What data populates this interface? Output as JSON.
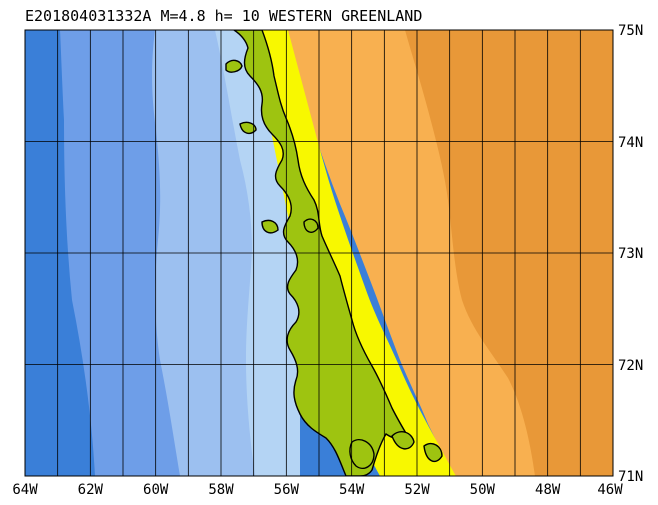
{
  "map": {
    "title": "E201804031332A M=4.8 h= 10 WESTERN GREENLAND",
    "lon_labels": [
      "64W",
      "62W",
      "60W",
      "58W",
      "56W",
      "54W",
      "52W",
      "50W",
      "48W",
      "46W"
    ],
    "lat_labels": [
      "75N",
      "74N",
      "73N",
      "72N",
      "71N"
    ],
    "lon_range": [
      -64,
      -46
    ],
    "lat_range": [
      71,
      75
    ],
    "grid_lon_step": 1,
    "grid_lat_step": 1,
    "grid": true,
    "colors": {
      "deep_ocean": "#3a7fd8",
      "mid_ocean": "#6e9ee8",
      "shelf_ocean": "#9cc0f0",
      "coastal_water": "#b4d4f4",
      "lowland": "#9ec410",
      "upland": "#f8f800",
      "ice_sheet": "#f8b050",
      "inner_ice": "#e89838"
    }
  }
}
